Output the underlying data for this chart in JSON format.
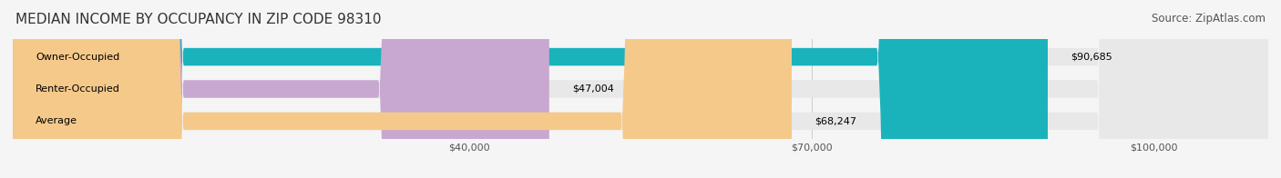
{
  "title": "MEDIAN INCOME BY OCCUPANCY IN ZIP CODE 98310",
  "source": "Source: ZipAtlas.com",
  "categories": [
    "Owner-Occupied",
    "Renter-Occupied",
    "Average"
  ],
  "values": [
    90685,
    47004,
    68247
  ],
  "labels": [
    "$90,685",
    "$47,004",
    "$68,247"
  ],
  "bar_colors": [
    "#1ab3bc",
    "#c8a8d0",
    "#f5c98a"
  ],
  "bar_edge_colors": [
    "#1ab3bc",
    "#c8a8d0",
    "#f5c98a"
  ],
  "background_color": "#f5f5f5",
  "bar_bg_color": "#e8e8e8",
  "xlim": [
    0,
    110000
  ],
  "xticks": [
    40000,
    70000,
    100000
  ],
  "xticklabels": [
    "$40,000",
    "$70,000",
    "$100,000"
  ],
  "title_fontsize": 11,
  "source_fontsize": 8.5,
  "label_fontsize": 8,
  "category_fontsize": 8,
  "bar_height": 0.55
}
